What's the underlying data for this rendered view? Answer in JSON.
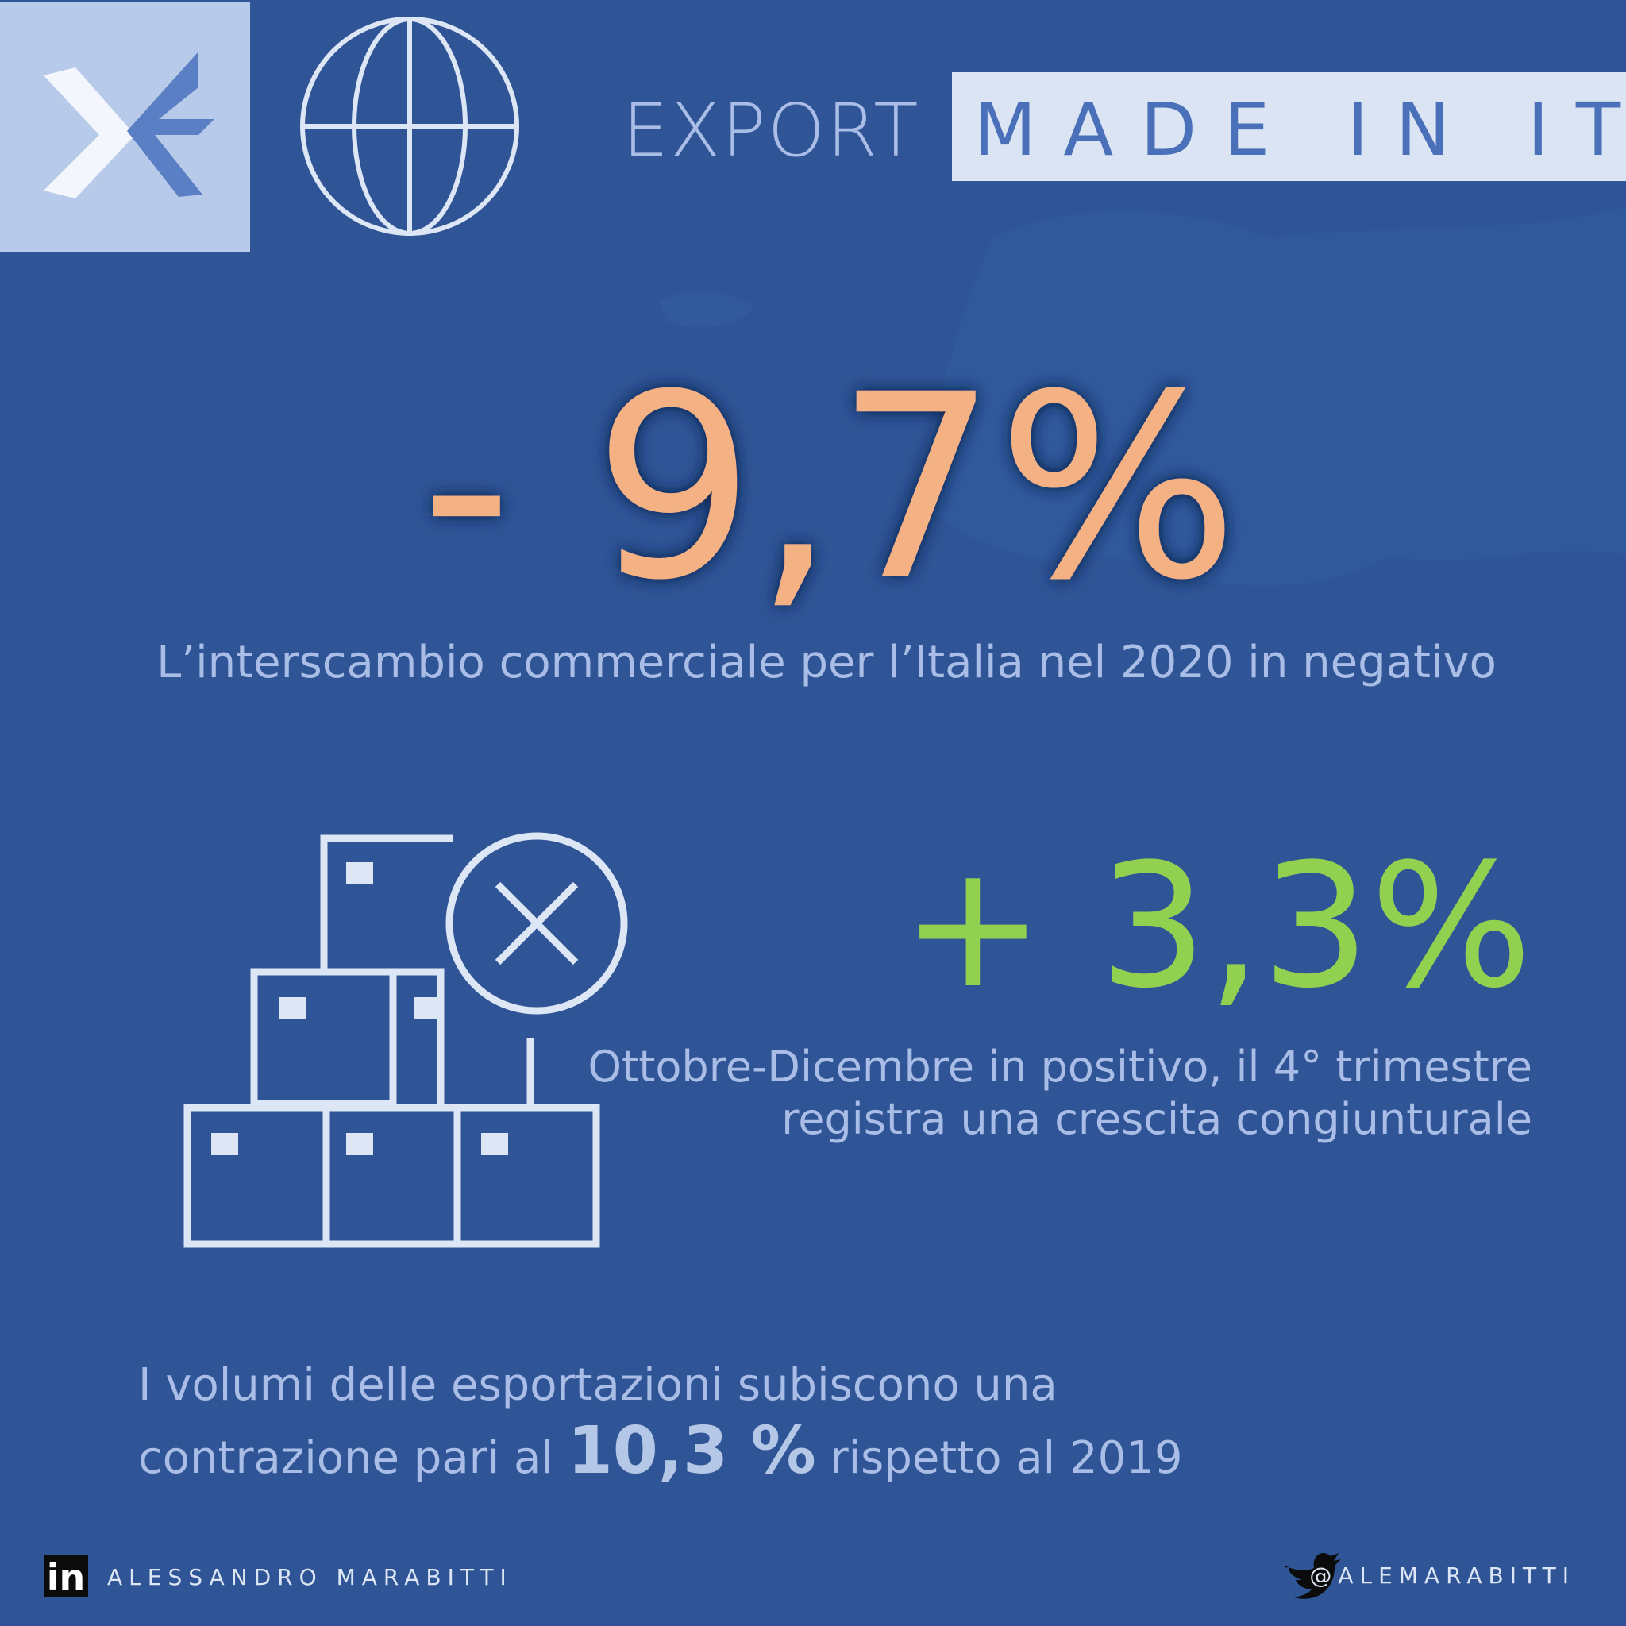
{
  "header": {
    "title_light": "EXPORT",
    "title_box": "MADE IN ITALY"
  },
  "stats": [
    {
      "value": "- 9,7%",
      "caption": "L’interscambio commerciale per l’Italia nel 2020 in negativo"
    },
    {
      "value": "+ 3,3%",
      "caption_lines": [
        "Ottobre-Dicembre in positivo, il 4° trimestre",
        "registra una crescita congiunturale"
      ]
    }
  ],
  "note": {
    "line1": "I volumi delle esportazioni  subiscono una",
    "line2_before": "contrazione pari al",
    "highlight": "10,3 %",
    "line2_after": "rispetto al 2019"
  },
  "footer": {
    "linkedin_icon": "in",
    "author": "ALESSANDRO MARABITTI",
    "twitter": "@ALEMARABITTI"
  }
}
